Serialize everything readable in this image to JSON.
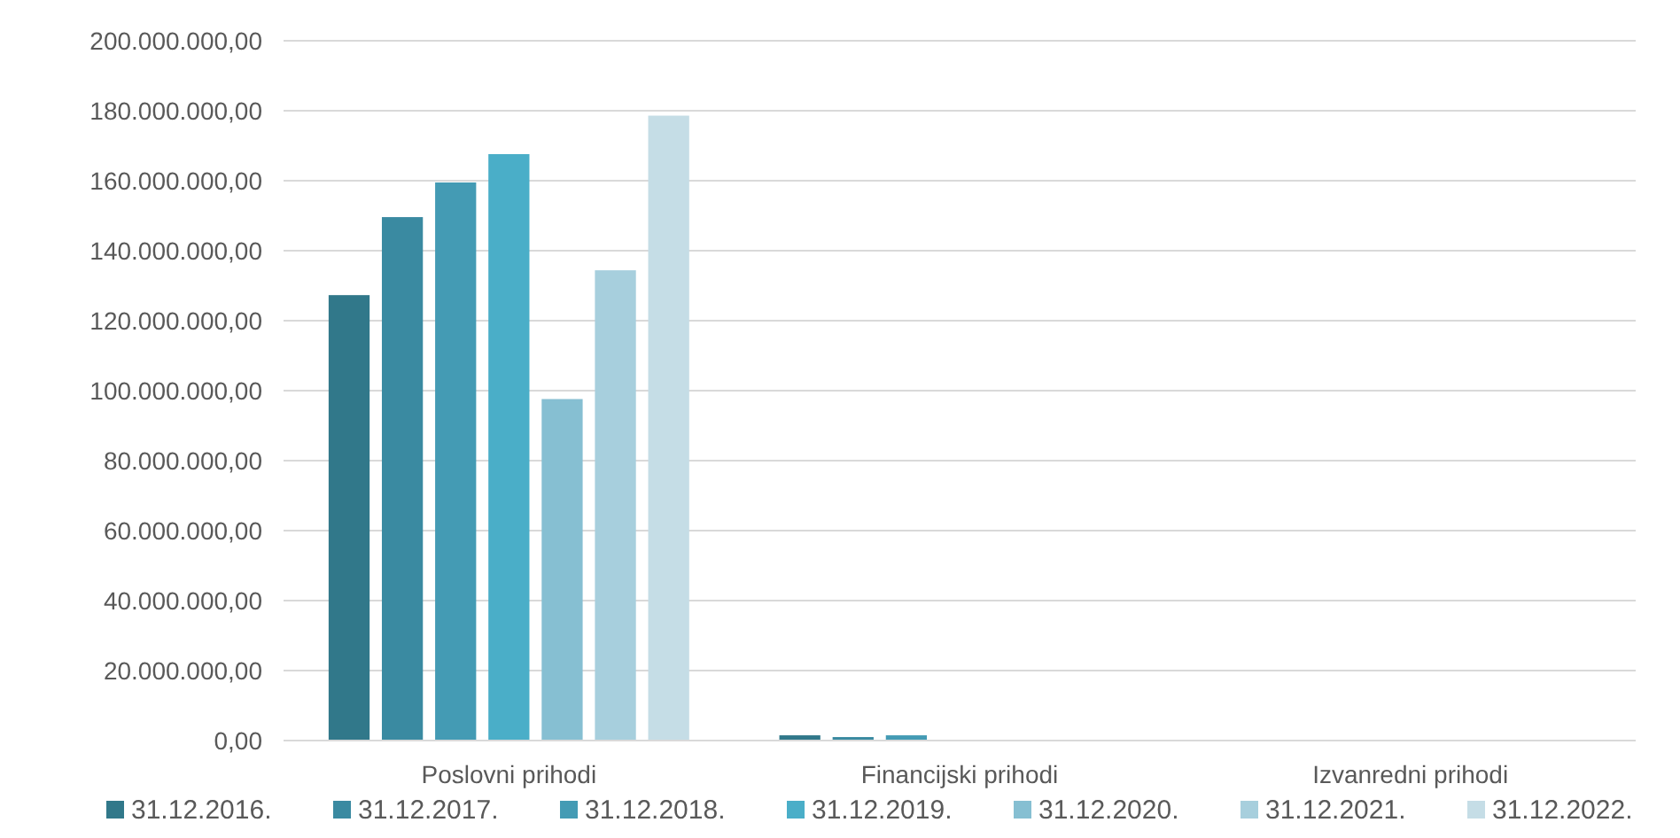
{
  "chart_data": {
    "type": "bar",
    "categories": [
      "Poslovni prihodi",
      "Financijski prihodi",
      "Izvanredni prihodi"
    ],
    "series": [
      {
        "name": "31.12.2016.",
        "color": "#31788a",
        "values": [
          127300000,
          1500000,
          0
        ]
      },
      {
        "name": "31.12.2017.",
        "color": "#3a8aa1",
        "values": [
          149600000,
          1000000,
          0
        ]
      },
      {
        "name": "31.12.2018.",
        "color": "#449bb4",
        "values": [
          159500000,
          1500000,
          0
        ]
      },
      {
        "name": "31.12.2019.",
        "color": "#4aaec8",
        "values": [
          167600000,
          null,
          0
        ]
      },
      {
        "name": "31.12.2020.",
        "color": "#86bfd2",
        "values": [
          97600000,
          null,
          0
        ]
      },
      {
        "name": "31.12.2021.",
        "color": "#a7cfdd",
        "values": [
          134400000,
          null,
          0
        ]
      },
      {
        "name": "31.12.2022.",
        "color": "#c5dde6",
        "values": [
          178600000,
          null,
          0
        ]
      }
    ],
    "ylim": [
      0,
      200000000
    ],
    "yticks": [
      {
        "value": 0,
        "label": "0,00"
      },
      {
        "value": 20000000,
        "label": "20.000.000,00"
      },
      {
        "value": 40000000,
        "label": "40.000.000,00"
      },
      {
        "value": 60000000,
        "label": "60.000.000,00"
      },
      {
        "value": 80000000,
        "label": "80.000.000,00"
      },
      {
        "value": 100000000,
        "label": "100.000.000,00"
      },
      {
        "value": 120000000,
        "label": "120.000.000,00"
      },
      {
        "value": 140000000,
        "label": "140.000.000,00"
      },
      {
        "value": 160000000,
        "label": "160.000.000,00"
      },
      {
        "value": 180000000,
        "label": "180.000.000,00"
      },
      {
        "value": 200000000,
        "label": "200.000.000,00"
      }
    ],
    "grid": "y",
    "legend": "bottom"
  }
}
